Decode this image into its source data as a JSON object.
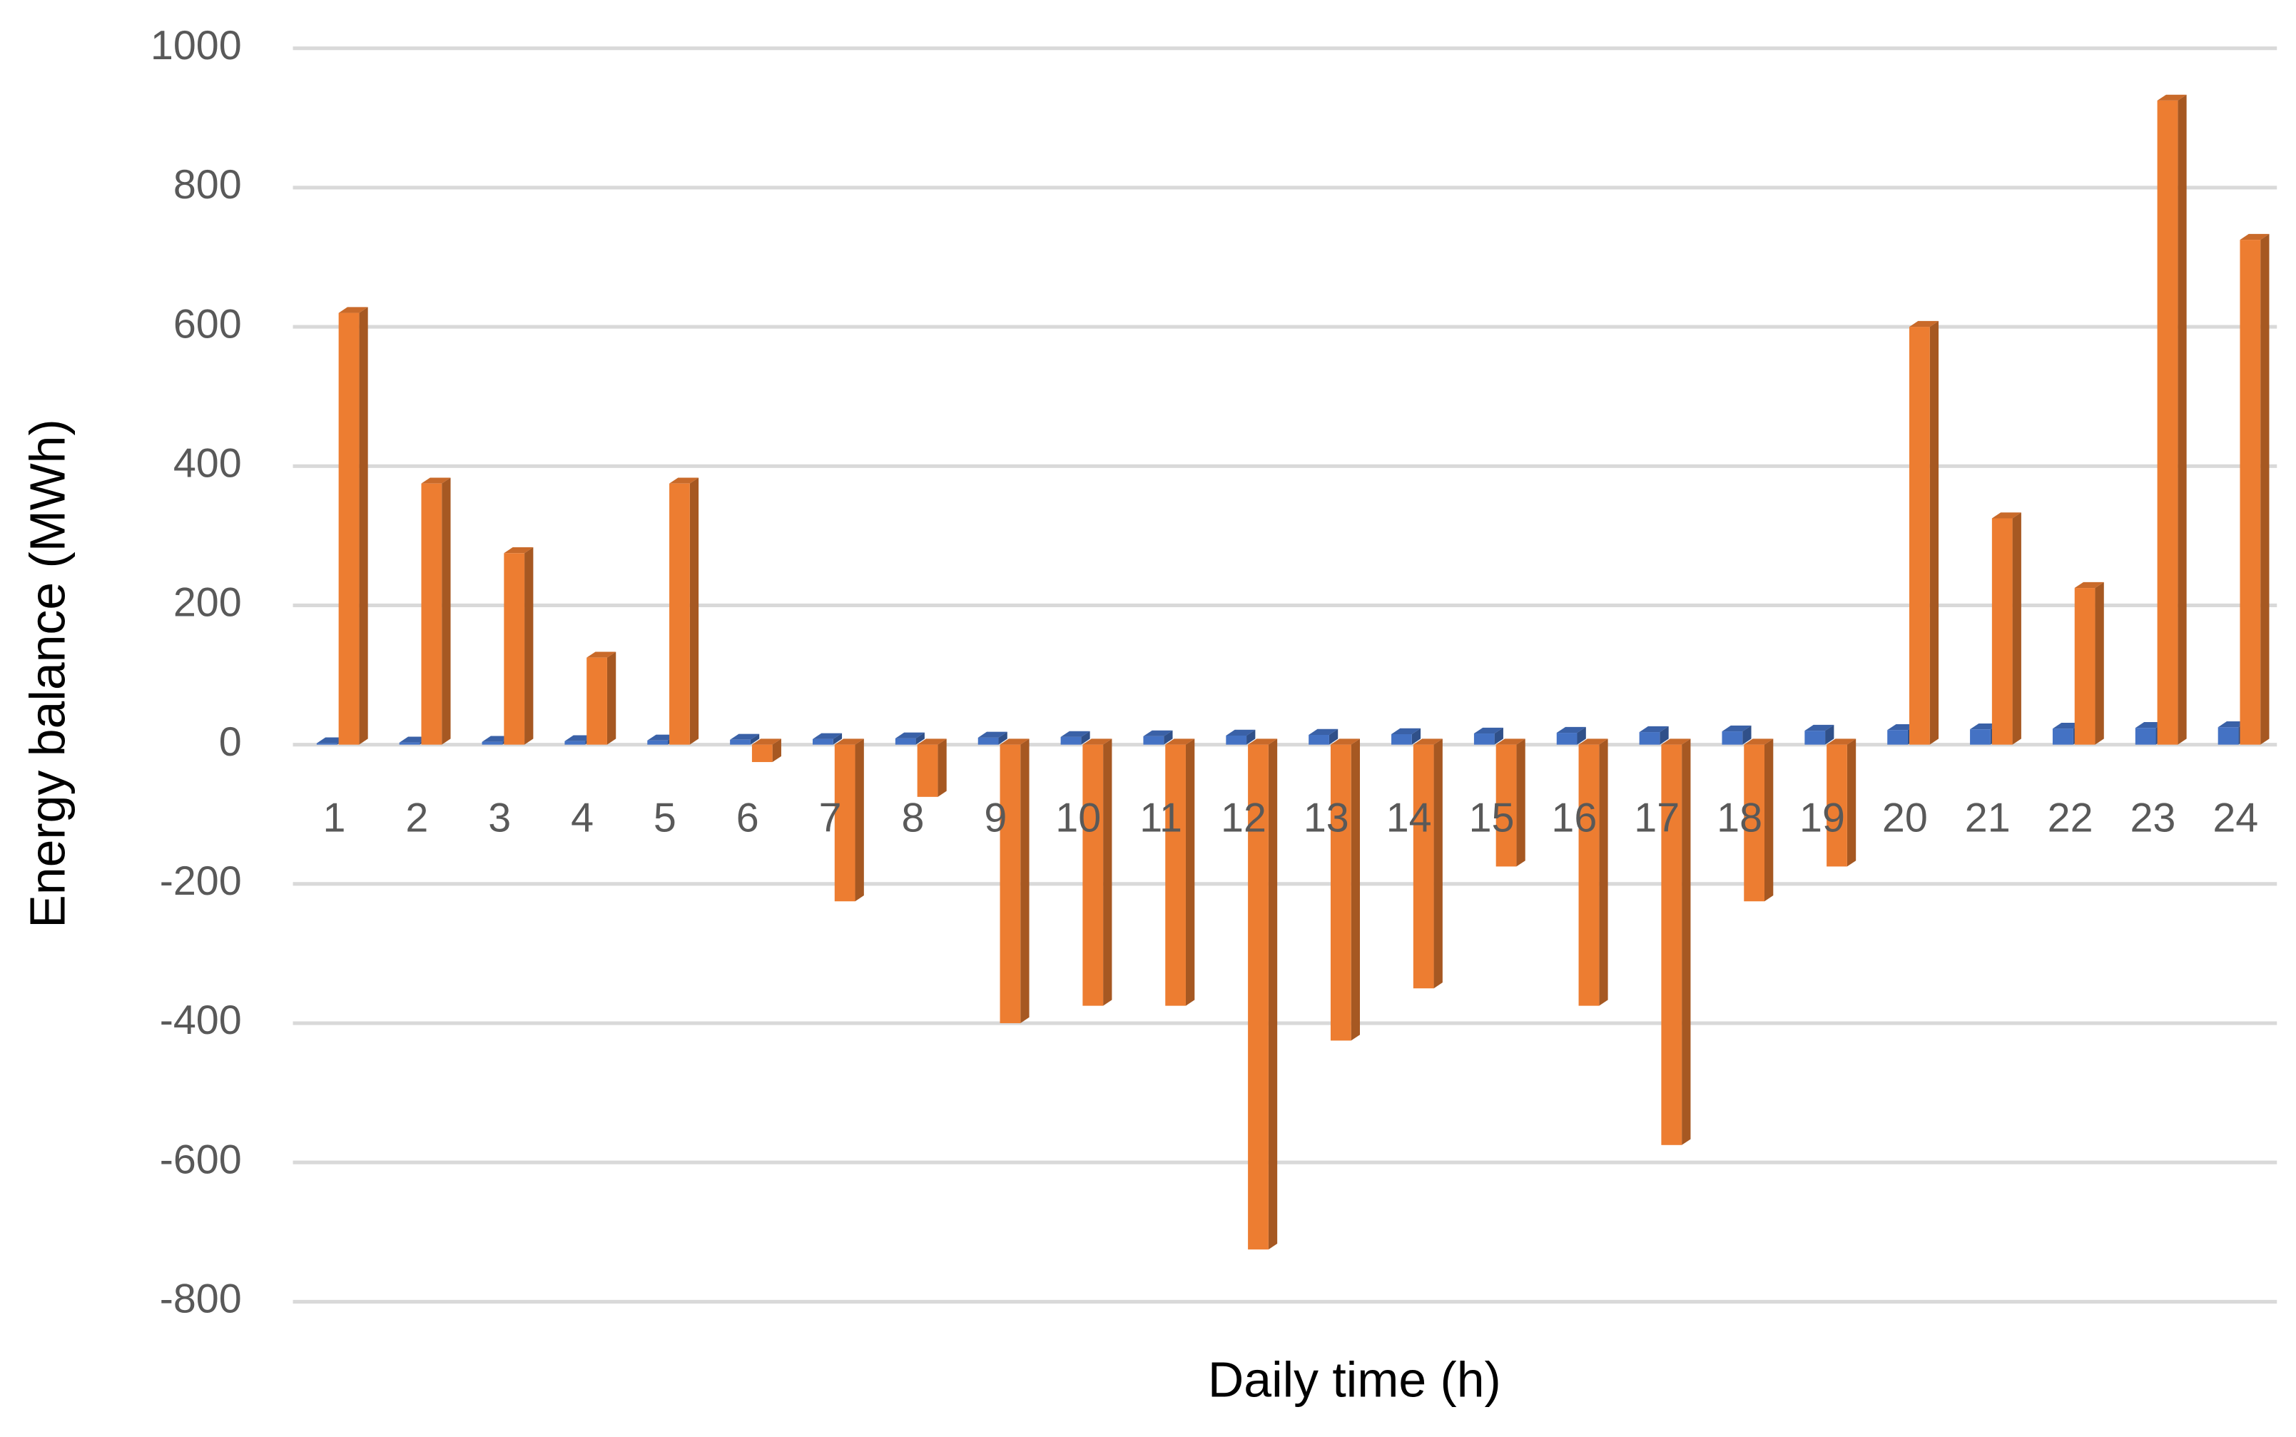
{
  "chart_data": {
    "type": "bar3d",
    "x_label": "Daily time (h)",
    "y_label": "Energy balance (MWh)",
    "categories": [
      "1",
      "2",
      "3",
      "4",
      "5",
      "6",
      "7",
      "8",
      "9",
      "10",
      "11",
      "12",
      "13",
      "14",
      "15",
      "16",
      "17",
      "18",
      "19",
      "20",
      "21",
      "22",
      "23",
      "24"
    ],
    "series": [
      {
        "color": "#4472c4",
        "values": [
          2,
          3,
          4,
          5,
          6,
          7,
          8,
          9,
          10,
          11,
          12,
          13,
          14,
          15,
          16,
          17,
          18,
          19,
          20,
          21,
          22,
          23,
          24,
          25
        ]
      },
      {
        "color": "#ed7d31",
        "values": [
          620,
          375,
          275,
          125,
          375,
          -25,
          -225,
          -75,
          -400,
          -375,
          -375,
          -725,
          -425,
          -350,
          -175,
          -375,
          -575,
          -225,
          -175,
          600,
          325,
          225,
          925,
          725
        ]
      }
    ],
    "ylim": [
      -800,
      1000
    ],
    "yticks": [
      -800,
      -600,
      -400,
      -200,
      0,
      200,
      400,
      600,
      800,
      1000
    ],
    "grid": true
  }
}
